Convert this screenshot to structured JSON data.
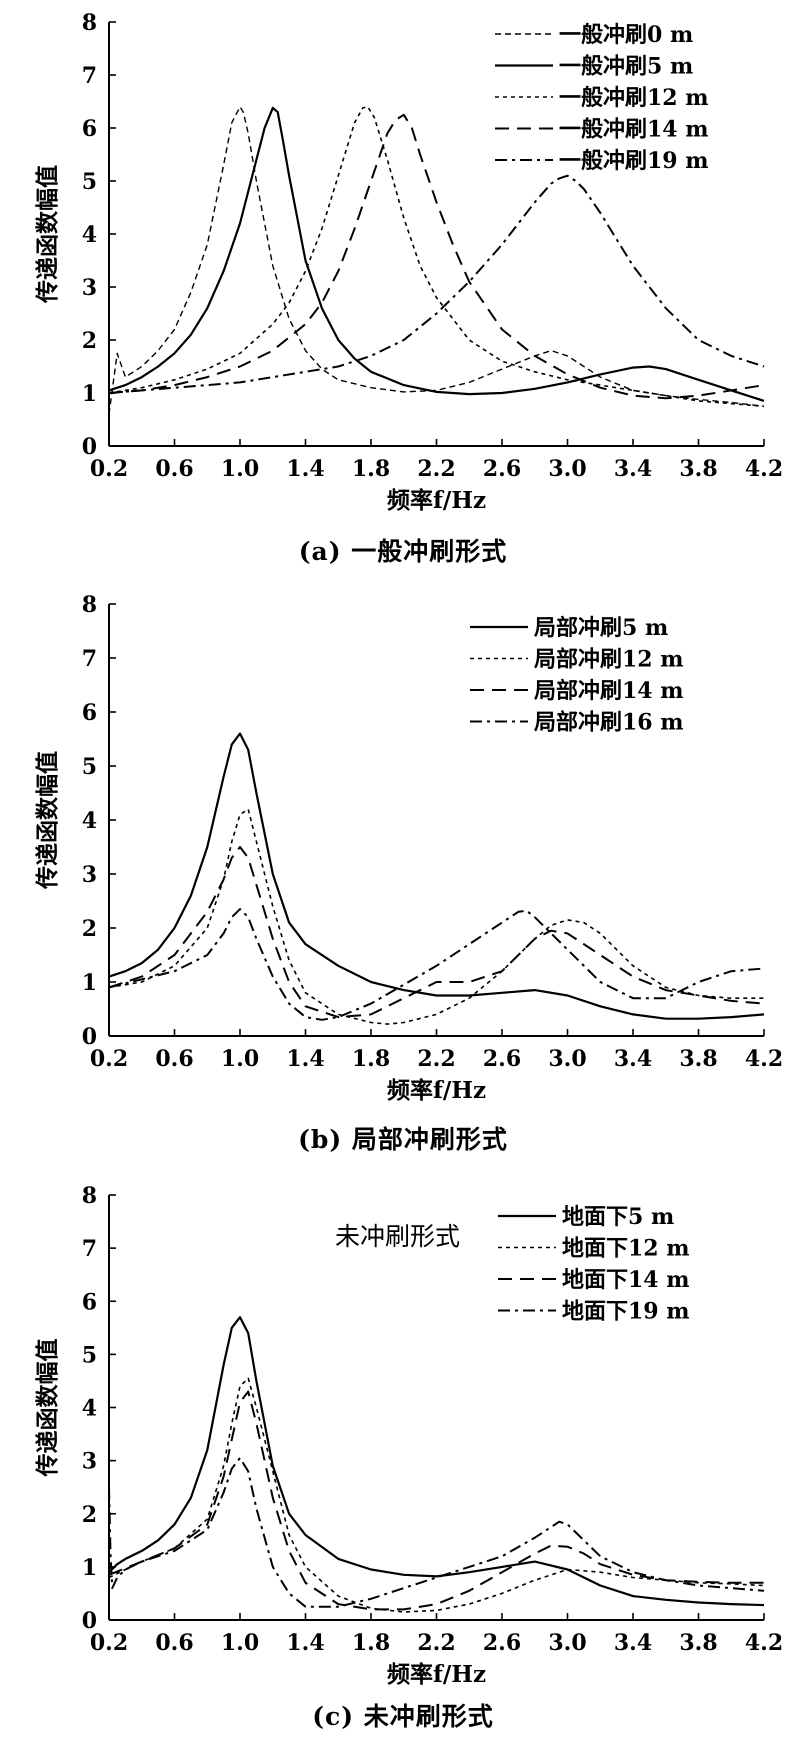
{
  "chart_data": [
    {
      "type": "line",
      "caption": "(a) 一般冲刷形式",
      "xlabel": "频率f/Hz",
      "ylabel": "传递函数幅值",
      "xlim": [
        0.2,
        4.2
      ],
      "ylim": [
        0,
        8
      ],
      "xticks": [
        "0.2",
        "0.6",
        "1.0",
        "1.4",
        "1.8",
        "2.2",
        "2.6",
        "3.0",
        "3.4",
        "3.8",
        "4.2"
      ],
      "yticks": [
        "0",
        "1",
        "2",
        "3",
        "4",
        "5",
        "6",
        "7",
        "8"
      ],
      "legend_position": "top-right",
      "annotation": "",
      "grid": false,
      "series": [
        {
          "name": "一般冲刷0 m",
          "dash": "6,4",
          "width": 1.4,
          "x": [
            0.2,
            0.25,
            0.3,
            0.4,
            0.5,
            0.6,
            0.7,
            0.8,
            0.9,
            0.95,
            1.0,
            1.02,
            1.05,
            1.1,
            1.2,
            1.3,
            1.4,
            1.5,
            1.6,
            1.8,
            2.0,
            2.2,
            2.4,
            2.6,
            2.8,
            2.9,
            3.0,
            3.2,
            3.4,
            3.6,
            3.8,
            4.0,
            4.2
          ],
          "y": [
            0.6,
            1.75,
            1.3,
            1.5,
            1.8,
            2.2,
            2.9,
            3.8,
            5.3,
            6.1,
            6.4,
            6.3,
            5.9,
            5.0,
            3.4,
            2.4,
            1.8,
            1.45,
            1.25,
            1.1,
            1.02,
            1.05,
            1.2,
            1.45,
            1.7,
            1.8,
            1.7,
            1.3,
            1.05,
            0.95,
            0.88,
            0.82,
            0.75
          ]
        },
        {
          "name": "一般冲刷5 m",
          "dash": "",
          "width": 2.2,
          "x": [
            0.2,
            0.3,
            0.4,
            0.5,
            0.6,
            0.7,
            0.8,
            0.9,
            1.0,
            1.1,
            1.15,
            1.2,
            1.23,
            1.26,
            1.3,
            1.35,
            1.4,
            1.5,
            1.6,
            1.7,
            1.8,
            2.0,
            2.2,
            2.4,
            2.6,
            2.8,
            3.0,
            3.2,
            3.4,
            3.5,
            3.6,
            3.8,
            4.0,
            4.2
          ],
          "y": [
            1.05,
            1.15,
            1.3,
            1.5,
            1.75,
            2.1,
            2.6,
            3.3,
            4.2,
            5.4,
            6.0,
            6.38,
            6.3,
            5.8,
            5.1,
            4.3,
            3.5,
            2.6,
            2.0,
            1.65,
            1.4,
            1.15,
            1.02,
            0.98,
            1.0,
            1.08,
            1.2,
            1.35,
            1.48,
            1.5,
            1.45,
            1.25,
            1.05,
            0.85
          ]
        },
        {
          "name": "一般冲刷12 m",
          "dash": "4,4",
          "width": 1.6,
          "x": [
            0.2,
            0.4,
            0.6,
            0.8,
            1.0,
            1.2,
            1.3,
            1.4,
            1.5,
            1.6,
            1.65,
            1.7,
            1.75,
            1.78,
            1.82,
            1.9,
            2.0,
            2.1,
            2.2,
            2.4,
            2.6,
            2.8,
            3.0,
            3.2,
            3.4,
            3.6,
            3.8,
            4.0,
            4.2
          ],
          "y": [
            1.0,
            1.1,
            1.25,
            1.45,
            1.75,
            2.3,
            2.7,
            3.3,
            4.1,
            5.1,
            5.6,
            6.1,
            6.38,
            6.4,
            6.2,
            5.4,
            4.3,
            3.4,
            2.8,
            2.0,
            1.6,
            1.4,
            1.25,
            1.15,
            1.05,
            0.95,
            0.85,
            0.8,
            0.75
          ]
        },
        {
          "name": "一般冲刷14 m",
          "dash": "14,8",
          "width": 2.0,
          "x": [
            0.2,
            0.4,
            0.6,
            0.8,
            1.0,
            1.2,
            1.4,
            1.5,
            1.6,
            1.7,
            1.8,
            1.9,
            1.95,
            2.0,
            2.05,
            2.1,
            2.2,
            2.3,
            2.4,
            2.6,
            2.8,
            3.0,
            3.2,
            3.4,
            3.6,
            3.8,
            4.0,
            4.2
          ],
          "y": [
            1.0,
            1.05,
            1.15,
            1.3,
            1.5,
            1.8,
            2.3,
            2.7,
            3.3,
            4.1,
            5.0,
            5.9,
            6.15,
            6.25,
            6.0,
            5.5,
            4.6,
            3.8,
            3.1,
            2.2,
            1.7,
            1.35,
            1.1,
            0.95,
            0.9,
            0.95,
            1.05,
            1.15
          ]
        },
        {
          "name": "一般冲刷19 m",
          "dash": "12,5,3,5",
          "width": 2.0,
          "x": [
            0.2,
            0.4,
            0.6,
            0.8,
            1.0,
            1.2,
            1.4,
            1.6,
            1.8,
            2.0,
            2.2,
            2.4,
            2.6,
            2.7,
            2.8,
            2.9,
            2.95,
            3.0,
            3.05,
            3.1,
            3.2,
            3.3,
            3.4,
            3.6,
            3.8,
            4.0,
            4.2
          ],
          "y": [
            1.0,
            1.05,
            1.1,
            1.15,
            1.2,
            1.3,
            1.4,
            1.5,
            1.7,
            2.0,
            2.5,
            3.1,
            3.8,
            4.2,
            4.6,
            4.95,
            5.05,
            5.1,
            5.0,
            4.85,
            4.4,
            3.9,
            3.4,
            2.6,
            2.0,
            1.7,
            1.5
          ]
        }
      ]
    },
    {
      "type": "line",
      "caption": "(b) 局部冲刷形式",
      "xlabel": "频率f/Hz",
      "ylabel": "传递函数幅值",
      "xlim": [
        0.2,
        4.2
      ],
      "ylim": [
        0,
        8
      ],
      "xticks": [
        "0.2",
        "0.6",
        "1.0",
        "1.4",
        "1.8",
        "2.2",
        "2.6",
        "3.0",
        "3.4",
        "3.8",
        "4.2"
      ],
      "yticks": [
        "0",
        "1",
        "2",
        "3",
        "4",
        "5",
        "6",
        "7",
        "8"
      ],
      "legend_position": "top-right",
      "annotation": "",
      "grid": false,
      "series": [
        {
          "name": "局部冲刷5 m",
          "dash": "",
          "width": 2.2,
          "x": [
            0.2,
            0.3,
            0.4,
            0.5,
            0.6,
            0.7,
            0.8,
            0.9,
            0.95,
            1.0,
            1.05,
            1.1,
            1.2,
            1.3,
            1.4,
            1.6,
            1.8,
            2.0,
            2.2,
            2.4,
            2.6,
            2.8,
            3.0,
            3.2,
            3.4,
            3.6,
            3.8,
            4.0,
            4.2
          ],
          "y": [
            1.1,
            1.2,
            1.35,
            1.6,
            2.0,
            2.6,
            3.5,
            4.8,
            5.4,
            5.6,
            5.3,
            4.5,
            3.0,
            2.1,
            1.7,
            1.3,
            1.0,
            0.85,
            0.75,
            0.75,
            0.8,
            0.85,
            0.75,
            0.55,
            0.4,
            0.32,
            0.32,
            0.35,
            0.4
          ]
        },
        {
          "name": "局部冲刷12 m",
          "dash": "4,4",
          "width": 1.6,
          "x": [
            0.2,
            0.4,
            0.6,
            0.8,
            0.9,
            0.95,
            1.0,
            1.05,
            1.1,
            1.2,
            1.3,
            1.4,
            1.6,
            1.8,
            1.9,
            2.0,
            2.2,
            2.4,
            2.6,
            2.8,
            2.9,
            3.0,
            3.1,
            3.2,
            3.3,
            3.4,
            3.6,
            3.8,
            4.0,
            4.2
          ],
          "y": [
            0.9,
            1.0,
            1.3,
            2.0,
            2.9,
            3.6,
            4.1,
            4.2,
            3.6,
            2.4,
            1.4,
            0.8,
            0.4,
            0.25,
            0.22,
            0.25,
            0.4,
            0.7,
            1.2,
            1.8,
            2.05,
            2.15,
            2.1,
            1.9,
            1.6,
            1.3,
            0.9,
            0.75,
            0.7,
            0.7
          ]
        },
        {
          "name": "局部冲刷14 m",
          "dash": "14,8",
          "width": 2.0,
          "x": [
            0.2,
            0.4,
            0.6,
            0.8,
            0.9,
            0.95,
            1.0,
            1.05,
            1.1,
            1.2,
            1.3,
            1.4,
            1.6,
            1.8,
            2.0,
            2.2,
            2.4,
            2.6,
            2.7,
            2.8,
            2.9,
            3.0,
            3.2,
            3.4,
            3.6,
            3.8,
            4.0,
            4.2
          ],
          "y": [
            0.9,
            1.1,
            1.5,
            2.3,
            2.9,
            3.3,
            3.5,
            3.3,
            2.8,
            1.8,
            1.0,
            0.55,
            0.35,
            0.4,
            0.7,
            1.0,
            1.0,
            1.2,
            1.5,
            1.8,
            1.95,
            1.9,
            1.5,
            1.1,
            0.85,
            0.75,
            0.65,
            0.6
          ]
        },
        {
          "name": "局部冲刷16 m",
          "dash": "12,5,3,5",
          "width": 2.0,
          "x": [
            0.2,
            0.4,
            0.6,
            0.8,
            0.9,
            0.95,
            1.0,
            1.05,
            1.1,
            1.2,
            1.3,
            1.4,
            1.5,
            1.6,
            1.8,
            2.0,
            2.2,
            2.4,
            2.6,
            2.7,
            2.75,
            2.8,
            3.0,
            3.2,
            3.4,
            3.6,
            3.8,
            4.0,
            4.2
          ],
          "y": [
            0.9,
            1.05,
            1.2,
            1.5,
            1.9,
            2.2,
            2.35,
            2.2,
            1.8,
            1.1,
            0.6,
            0.35,
            0.3,
            0.35,
            0.6,
            0.95,
            1.3,
            1.7,
            2.1,
            2.3,
            2.32,
            2.2,
            1.6,
            1.0,
            0.7,
            0.7,
            1.0,
            1.2,
            1.25
          ]
        }
      ]
    },
    {
      "type": "line",
      "caption": "(c) 未冲刷形式",
      "xlabel": "频率f/Hz",
      "ylabel": "传递函数幅值",
      "xlim": [
        0.2,
        4.2
      ],
      "ylim": [
        0,
        8
      ],
      "xticks": [
        "0.2",
        "0.6",
        "1.0",
        "1.4",
        "1.8",
        "2.2",
        "2.6",
        "3.0",
        "3.4",
        "3.8",
        "4.2"
      ],
      "yticks": [
        "0",
        "1",
        "2",
        "3",
        "4",
        "5",
        "6",
        "7",
        "8"
      ],
      "legend_position": "top-right",
      "annotation": "未冲刷形式",
      "grid": false,
      "series": [
        {
          "name": "地面下5 m",
          "dash": "",
          "width": 2.2,
          "x": [
            0.2,
            0.25,
            0.3,
            0.4,
            0.5,
            0.6,
            0.7,
            0.8,
            0.9,
            0.95,
            1.0,
            1.05,
            1.1,
            1.2,
            1.3,
            1.4,
            1.6,
            1.8,
            2.0,
            2.2,
            2.4,
            2.6,
            2.8,
            3.0,
            3.2,
            3.4,
            3.6,
            3.8,
            4.0,
            4.2
          ],
          "y": [
            0.9,
            1.05,
            1.15,
            1.3,
            1.5,
            1.8,
            2.3,
            3.2,
            4.8,
            5.5,
            5.7,
            5.4,
            4.5,
            2.9,
            2.0,
            1.6,
            1.15,
            0.95,
            0.85,
            0.82,
            0.9,
            1.0,
            1.1,
            0.95,
            0.65,
            0.45,
            0.38,
            0.33,
            0.3,
            0.28
          ]
        },
        {
          "name": "地面下12 m",
          "dash": "4,4",
          "width": 1.6,
          "x": [
            0.2,
            0.4,
            0.6,
            0.8,
            0.9,
            0.95,
            1.0,
            1.05,
            1.1,
            1.2,
            1.3,
            1.4,
            1.6,
            1.8,
            2.0,
            2.2,
            2.4,
            2.6,
            2.8,
            3.0,
            3.2,
            3.4,
            3.6,
            3.8,
            4.0,
            4.2
          ],
          "y": [
            0.8,
            1.1,
            1.35,
            1.9,
            2.9,
            3.7,
            4.4,
            4.55,
            4.0,
            2.8,
            1.6,
            1.0,
            0.45,
            0.22,
            0.15,
            0.18,
            0.3,
            0.5,
            0.75,
            0.95,
            0.9,
            0.8,
            0.75,
            0.7,
            0.68,
            0.65
          ]
        },
        {
          "name": "地面下14 m",
          "dash": "14,8",
          "width": 2.0,
          "x": [
            0.2,
            0.4,
            0.6,
            0.8,
            0.9,
            0.95,
            1.0,
            1.05,
            1.1,
            1.2,
            1.3,
            1.4,
            1.6,
            1.8,
            2.0,
            2.2,
            2.4,
            2.6,
            2.8,
            2.9,
            3.0,
            3.1,
            3.2,
            3.4,
            3.6,
            3.8,
            4.0,
            4.2
          ],
          "y": [
            0.85,
            1.1,
            1.35,
            1.8,
            2.7,
            3.4,
            4.1,
            4.3,
            3.7,
            2.3,
            1.3,
            0.7,
            0.3,
            0.2,
            0.2,
            0.3,
            0.55,
            0.9,
            1.25,
            1.4,
            1.38,
            1.25,
            1.05,
            0.85,
            0.75,
            0.72,
            0.7,
            0.7
          ]
        },
        {
          "name": "地面下19 m",
          "dash": "12,5,3,5",
          "width": 2.0,
          "x": [
            0.2,
            0.21,
            0.22,
            0.25,
            0.3,
            0.4,
            0.6,
            0.8,
            0.9,
            0.95,
            1.0,
            1.05,
            1.1,
            1.2,
            1.3,
            1.4,
            1.6,
            1.8,
            2.0,
            2.2,
            2.4,
            2.6,
            2.8,
            2.9,
            2.95,
            3.0,
            3.1,
            3.2,
            3.4,
            3.6,
            3.8,
            4.0,
            4.2
          ],
          "y": [
            2.5,
            1.2,
            0.6,
            0.8,
            0.95,
            1.1,
            1.3,
            1.7,
            2.4,
            2.85,
            3.05,
            2.8,
            2.1,
            1.0,
            0.5,
            0.25,
            0.25,
            0.4,
            0.6,
            0.8,
            1.0,
            1.2,
            1.55,
            1.75,
            1.85,
            1.8,
            1.5,
            1.2,
            0.9,
            0.75,
            0.65,
            0.6,
            0.55
          ]
        }
      ]
    }
  ]
}
